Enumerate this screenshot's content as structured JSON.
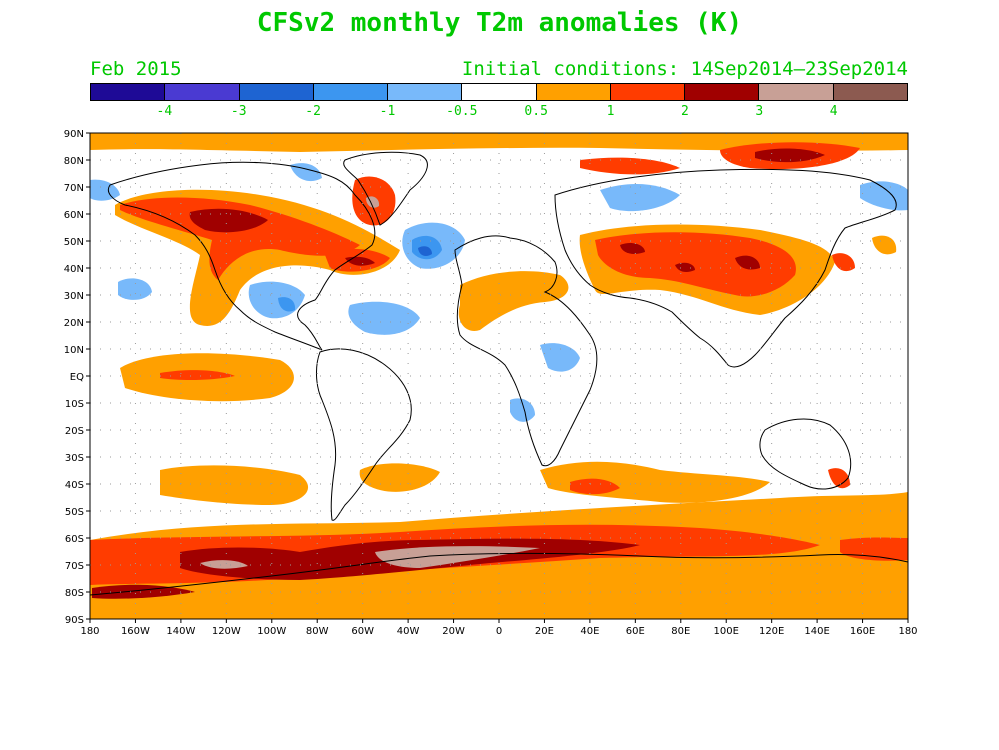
{
  "title": "CFSv2 monthly T2m anomalies (K)",
  "month": "Feb 2015",
  "initial_conditions": "Initial conditions: 14Sep2014–23Sep2014",
  "colorbar": {
    "colors": [
      "#1e0a96",
      "#4a3ad2",
      "#1e64d2",
      "#3c96f0",
      "#78b9fa",
      "#ffffff",
      "#ffa000",
      "#ff3c00",
      "#a00000",
      "#c8a096",
      "#8c5a50"
    ],
    "labels": [
      "-4",
      "-3",
      "-2",
      "-1",
      "-0.5",
      "0.5",
      "1",
      "2",
      "3",
      "4"
    ]
  },
  "axes": {
    "lat_labels": [
      "90N",
      "80N",
      "70N",
      "60N",
      "50N",
      "40N",
      "30N",
      "20N",
      "10N",
      "EQ",
      "10S",
      "20S",
      "30S",
      "40S",
      "50S",
      "60S",
      "70S",
      "80S",
      "90S"
    ],
    "lon_labels": [
      "180",
      "160W",
      "140W",
      "120W",
      "100W",
      "80W",
      "60W",
      "40W",
      "20W",
      "0",
      "20E",
      "40E",
      "60E",
      "80E",
      "100E",
      "120E",
      "140E",
      "160E",
      "180"
    ]
  }
}
